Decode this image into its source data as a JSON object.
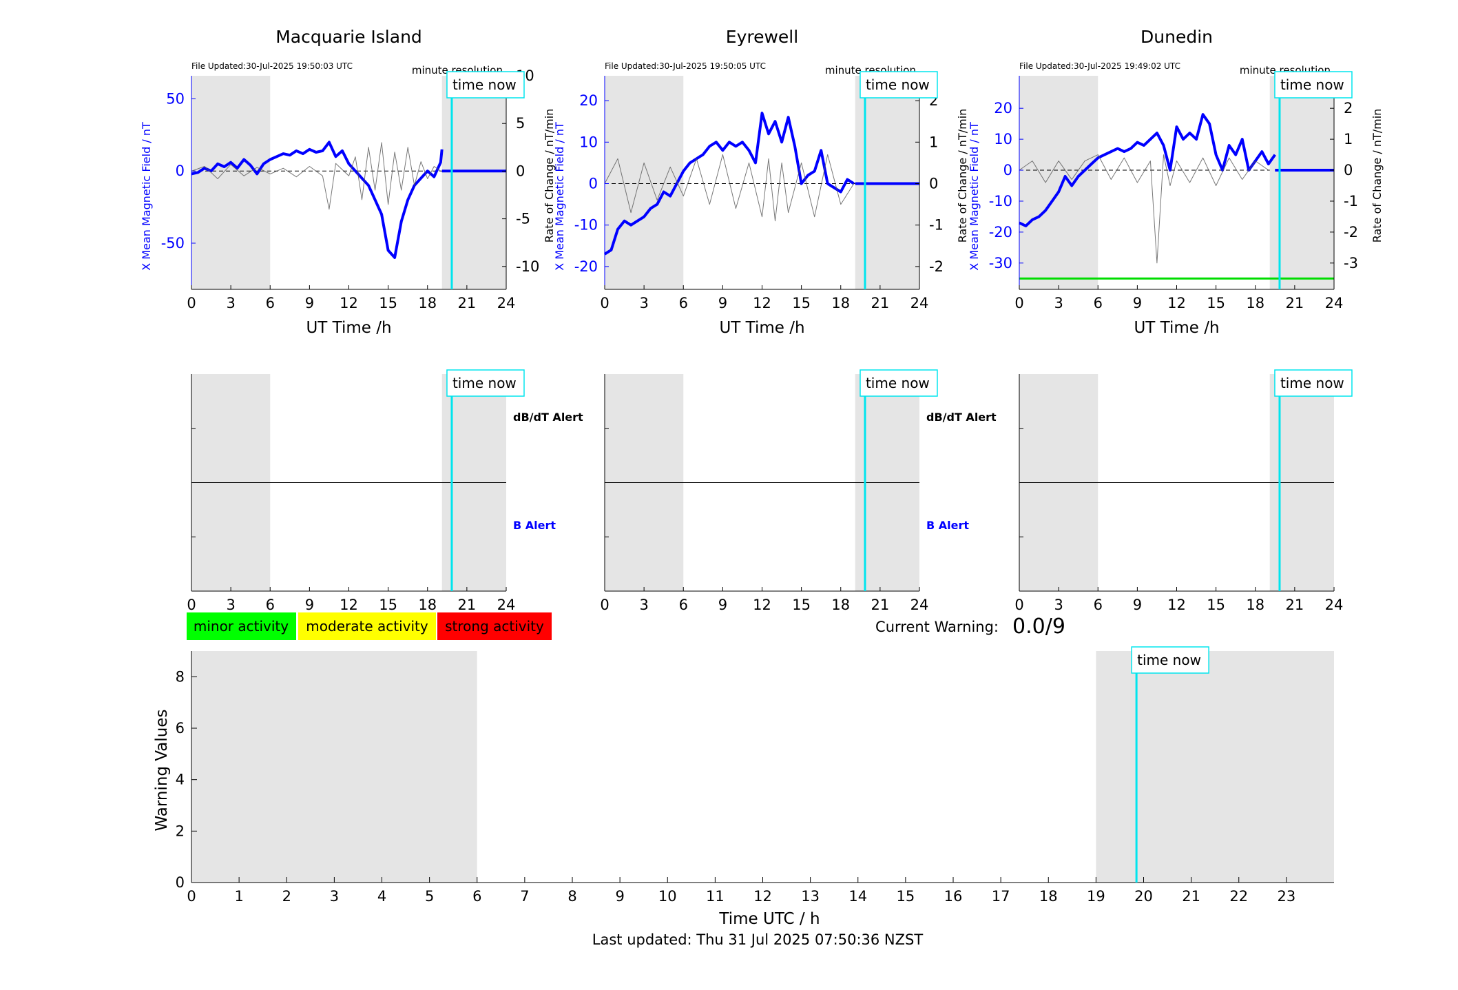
{
  "footer": {
    "last_updated": "Last updated: Thu 31 Jul 2025 07:50:36 NZST"
  },
  "labels": {
    "time_now": "time now",
    "minute_resolution": "minute resolution",
    "dbdt_alert": "dB/dT Alert",
    "b_alert": "B Alert",
    "ut_time": "UT Time /h",
    "x_mean": "X Mean Magnetic Field / nT",
    "rate": "Rate of Change / nT/min"
  },
  "legend": {
    "minor": "minor activity",
    "moderate": "moderate activity",
    "strong": "strong activity",
    "minor_color": "#00ff00",
    "moderate_color": "#ffff00",
    "strong_color": "#ff0000"
  },
  "warning": {
    "label": "Current Warning:",
    "value": "0.0/9"
  },
  "colors": {
    "field": "#0000ff",
    "rate": "#555555",
    "time_now": "#00e5ee",
    "shade": "#e5e5e5",
    "threshold": "#00dd00"
  },
  "chart_data": [
    {
      "type": "line",
      "title": "Macquarie Island",
      "file_updated": "File Updated:30-Jul-2025 19:50:03 UTC",
      "xlabel": "UT Time /h",
      "xticks": [
        0,
        3,
        6,
        9,
        12,
        15,
        18,
        21,
        24
      ],
      "xlim": [
        0,
        24
      ],
      "ylim_left": [
        -82,
        66
      ],
      "yticks_left": [
        -50,
        0,
        50
      ],
      "ylim_right": [
        -12.4,
        10
      ],
      "yticks_right": [
        -10,
        -5,
        0,
        5,
        10
      ],
      "shaded": [
        [
          0,
          6
        ],
        [
          19.1,
          24
        ]
      ],
      "time_now": 19.85,
      "series": [
        {
          "name": "X Mean Magnetic Field",
          "axis": "left",
          "color": "#0000ff",
          "x": [
            0,
            0.5,
            1,
            1.5,
            2,
            2.5,
            3,
            3.5,
            4,
            4.5,
            5,
            5.5,
            6,
            6.5,
            7,
            7.5,
            8,
            8.5,
            9,
            9.5,
            10,
            10.5,
            11,
            11.5,
            12,
            12.5,
            13,
            13.5,
            14,
            14.5,
            15,
            15.5,
            16,
            16.5,
            17,
            17.5,
            18,
            18.5,
            19,
            19.1
          ],
          "values": [
            -2,
            -1,
            2,
            0,
            5,
            3,
            6,
            2,
            8,
            4,
            -2,
            5,
            8,
            10,
            12,
            11,
            14,
            12,
            15,
            13,
            14,
            20,
            10,
            14,
            5,
            0,
            -5,
            -10,
            -20,
            -30,
            -55,
            -60,
            -35,
            -20,
            -10,
            -5,
            0,
            -4,
            6,
            15
          ]
        },
        {
          "name": "Rate of Change",
          "axis": "right",
          "color": "#555555",
          "x": [
            0,
            1,
            2,
            3,
            4,
            5,
            6,
            7,
            8,
            9,
            10,
            10.5,
            11,
            12,
            12.5,
            13,
            13.5,
            14,
            14.5,
            15,
            15.5,
            16,
            16.5,
            17,
            17.5,
            18,
            18.5,
            19
          ],
          "values": [
            0,
            0.5,
            -0.8,
            0.7,
            -0.5,
            0.4,
            -0.3,
            0.3,
            -0.6,
            0.5,
            -0.5,
            -4,
            0.8,
            -0.5,
            1.5,
            -3,
            2.5,
            -2,
            3,
            -3.5,
            2,
            -2,
            2.5,
            -1.5,
            1,
            -0.8,
            0.5,
            0
          ]
        },
        {
          "name": "Zero",
          "axis": "left",
          "color": "#0000ff",
          "x": [
            19.1,
            24
          ],
          "values": [
            0,
            0
          ]
        }
      ]
    },
    {
      "type": "line",
      "title": "Eyrewell",
      "file_updated": "File Updated:30-Jul-2025 19:50:05 UTC",
      "xlabel": "UT Time /h",
      "xticks": [
        0,
        3,
        6,
        9,
        12,
        15,
        18,
        21,
        24
      ],
      "xlim": [
        0,
        24
      ],
      "ylim_left": [
        -25.5,
        26
      ],
      "yticks_left": [
        -20,
        -10,
        0,
        10,
        20
      ],
      "ylim_right": [
        -2.55,
        2.6
      ],
      "yticks_right": [
        -2,
        -1,
        0,
        1,
        2
      ],
      "shaded": [
        [
          0,
          6
        ],
        [
          19.1,
          24
        ]
      ],
      "time_now": 19.85,
      "series": [
        {
          "name": "X Mean Magnetic Field",
          "axis": "left",
          "color": "#0000ff",
          "x": [
            0,
            0.5,
            1,
            1.5,
            2,
            2.5,
            3,
            3.5,
            4,
            4.5,
            5,
            5.5,
            6,
            6.5,
            7,
            7.5,
            8,
            8.5,
            9,
            9.5,
            10,
            10.5,
            11,
            11.5,
            12,
            12.5,
            13,
            13.5,
            14,
            14.5,
            15,
            15.5,
            16,
            16.5,
            17,
            17.5,
            18,
            18.5,
            19
          ],
          "values": [
            -17,
            -16,
            -11,
            -9,
            -10,
            -9,
            -8,
            -6,
            -5,
            -2,
            -3,
            0,
            3,
            5,
            6,
            7,
            9,
            10,
            8,
            10,
            9,
            10,
            8,
            5,
            17,
            12,
            15,
            10,
            16,
            9,
            0,
            2,
            3,
            8,
            0,
            -1,
            -2,
            1,
            0
          ]
        },
        {
          "name": "Rate of Change",
          "axis": "right",
          "color": "#555555",
          "x": [
            0,
            1,
            2,
            3,
            4,
            5,
            6,
            7,
            8,
            9,
            10,
            11,
            12,
            12.5,
            13,
            13.5,
            14,
            15,
            16,
            17,
            18,
            19
          ],
          "values": [
            0,
            0.6,
            -0.7,
            0.5,
            -0.4,
            0.4,
            -0.3,
            0.6,
            -0.5,
            0.7,
            -0.6,
            0.5,
            -0.8,
            0.6,
            -0.9,
            0.5,
            -0.7,
            0.5,
            -0.8,
            0.7,
            -0.5,
            0
          ]
        },
        {
          "name": "Zero",
          "axis": "left",
          "color": "#0000ff",
          "x": [
            19.1,
            24
          ],
          "values": [
            0,
            0
          ]
        }
      ]
    },
    {
      "type": "line",
      "title": "Dunedin",
      "file_updated": "File Updated:30-Jul-2025 19:49:02 UTC",
      "xlabel": "UT Time /h",
      "xticks": [
        0,
        3,
        6,
        9,
        12,
        15,
        18,
        21,
        24
      ],
      "xlim": [
        0,
        24
      ],
      "ylim_left": [
        -38.5,
        30.5
      ],
      "yticks_left": [
        -30,
        -20,
        -10,
        0,
        10,
        20
      ],
      "ylim_right": [
        -3.85,
        3.05
      ],
      "yticks_right": [
        -3,
        -2,
        -1,
        0,
        1,
        2
      ],
      "shaded": [
        [
          0,
          6
        ],
        [
          19.1,
          24
        ]
      ],
      "time_now": 19.85,
      "threshold": -35,
      "series": [
        {
          "name": "X Mean Magnetic Field",
          "axis": "left",
          "color": "#0000ff",
          "x": [
            0,
            0.5,
            1,
            1.5,
            2,
            2.5,
            3,
            3.5,
            4,
            4.5,
            5,
            5.5,
            6,
            6.5,
            7,
            7.5,
            8,
            8.5,
            9,
            9.5,
            10,
            10.5,
            11,
            11.5,
            12,
            12.5,
            13,
            13.5,
            14,
            14.5,
            15,
            15.5,
            16,
            16.5,
            17,
            17.5,
            18,
            18.5,
            19,
            19.5
          ],
          "values": [
            -17,
            -18,
            -16,
            -15,
            -13,
            -10,
            -7,
            -2,
            -5,
            -2,
            0,
            2,
            4,
            5,
            6,
            7,
            6,
            7,
            9,
            8,
            10,
            12,
            8,
            0,
            14,
            10,
            12,
            10,
            18,
            15,
            5,
            0,
            8,
            5,
            10,
            0,
            3,
            6,
            2,
            5
          ]
        },
        {
          "name": "Rate of Change",
          "axis": "right",
          "color": "#555555",
          "x": [
            0,
            1,
            2,
            3,
            4,
            5,
            6,
            7,
            8,
            9,
            10,
            10.5,
            11,
            11.5,
            12,
            13,
            14,
            15,
            16,
            17,
            18,
            19
          ],
          "values": [
            0,
            0.3,
            -0.4,
            0.3,
            -0.3,
            0.3,
            0.5,
            -0.3,
            0.4,
            -0.4,
            0.3,
            -3,
            0.5,
            -0.5,
            0.3,
            -0.4,
            0.4,
            -0.5,
            0.4,
            -0.3,
            0.3,
            0
          ]
        },
        {
          "name": "Zero",
          "axis": "left",
          "color": "#0000ff",
          "x": [
            19.5,
            24
          ],
          "values": [
            0,
            0
          ]
        }
      ]
    },
    {
      "type": "line",
      "title": "",
      "xlabel": "",
      "xticks": [
        0,
        3,
        6,
        9,
        12,
        15,
        18,
        21,
        24
      ],
      "xlim": [
        0,
        24
      ],
      "shaded": [
        [
          0,
          6
        ],
        [
          19.1,
          24
        ]
      ],
      "time_now": 19.85,
      "alerts": [
        "dB/dT Alert",
        "B Alert"
      ]
    },
    {
      "type": "line",
      "title": "",
      "xlabel": "",
      "xticks": [
        0,
        3,
        6,
        9,
        12,
        15,
        18,
        21,
        24
      ],
      "xlim": [
        0,
        24
      ],
      "shaded": [
        [
          0,
          6
        ],
        [
          19.1,
          24
        ]
      ],
      "time_now": 19.85,
      "alerts": [
        "dB/dT Alert",
        "B Alert"
      ]
    },
    {
      "type": "line",
      "title": "",
      "xlabel": "",
      "xticks": [
        0,
        3,
        6,
        9,
        12,
        15,
        18,
        21,
        24
      ],
      "xlim": [
        0,
        24
      ],
      "shaded": [
        [
          0,
          6
        ],
        [
          19.1,
          24
        ]
      ],
      "time_now": 19.85,
      "alerts": []
    },
    {
      "type": "line",
      "title": "",
      "xlabel": "Time UTC / h",
      "ylabel": "Warning Values",
      "xticks": [
        0,
        1,
        2,
        3,
        4,
        5,
        6,
        7,
        8,
        9,
        10,
        11,
        12,
        13,
        14,
        15,
        16,
        17,
        18,
        19,
        20,
        21,
        22,
        23
      ],
      "xlim": [
        0,
        24
      ],
      "ylim": [
        0,
        9
      ],
      "yticks": [
        0,
        2,
        4,
        6,
        8
      ],
      "shaded": [
        [
          0,
          6
        ],
        [
          19,
          24
        ]
      ],
      "time_now": 19.85,
      "series": []
    }
  ]
}
